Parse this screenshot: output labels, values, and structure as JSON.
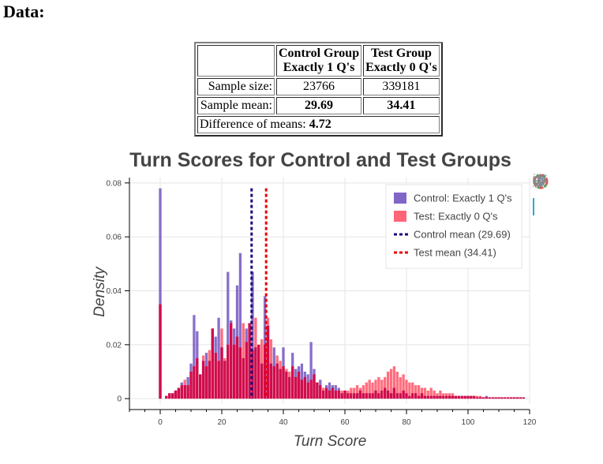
{
  "heading": "Data:",
  "table": {
    "col1_line1": "Control Group",
    "col1_line2": "Exactly 1 Q's",
    "col2_line1": "Test Group",
    "col2_line2": "Exactly 0 Q's",
    "row1_label": "Sample size:",
    "row1_control": "23766",
    "row1_test": "339181",
    "row2_label": "Sample mean:",
    "row2_control": "29.69",
    "row2_test": "34.41",
    "diff_label": "Difference of means: ",
    "diff_value": "4.72"
  },
  "toolbar": {
    "logo_icon": "bokeh-logo-icon",
    "pan_icon": "pan-icon",
    "zoom_icon": "box-zoom-icon",
    "wheel_icon": "wheel-zoom-icon",
    "reset_icon": "reset-icon"
  },
  "chart_data": {
    "type": "bar",
    "title": "Turn Scores for Control and Test Groups",
    "xlabel": "Turn Score",
    "ylabel": "Density",
    "xlim": [
      -10,
      120
    ],
    "ylim": [
      -0.002,
      0.082
    ],
    "xticks": [
      0,
      20,
      40,
      60,
      80,
      100,
      120
    ],
    "yticks": [
      0,
      0.02,
      0.04,
      0.06,
      0.08
    ],
    "ytick_labels": [
      "0",
      "0.02",
      "0.04",
      "0.06",
      "0.08"
    ],
    "grid": true,
    "legend_position": "top-right",
    "colors": {
      "control": "#6a4bbd",
      "test": "#ff4a5f",
      "overlap": "#cc0044",
      "control_mean": "#1a0a80",
      "test_mean": "#ee0000"
    },
    "series": [
      {
        "name": "Control: Exactly 1 Q's",
        "kind": "histogram",
        "x": [
          0,
          2,
          3,
          4,
          5,
          6,
          7,
          8,
          9,
          10,
          11,
          12,
          13,
          14,
          15,
          16,
          17,
          18,
          19,
          20,
          21,
          22,
          23,
          24,
          25,
          26,
          27,
          28,
          29,
          30,
          31,
          32,
          33,
          34,
          35,
          36,
          37,
          38,
          39,
          40,
          41,
          42,
          43,
          44,
          45,
          46,
          47,
          48,
          49,
          50,
          51,
          52,
          53,
          54,
          55,
          56,
          57,
          58,
          59,
          60,
          61,
          62,
          63,
          64,
          65,
          66,
          67,
          68,
          69,
          70,
          71,
          72,
          73,
          74,
          75,
          76,
          77,
          78,
          79,
          80,
          81,
          82,
          83,
          84,
          85,
          86,
          87,
          88,
          89,
          90,
          91,
          92,
          93,
          94,
          95,
          96,
          97,
          98,
          99,
          100,
          101,
          102,
          103,
          104,
          105,
          106,
          107,
          108,
          109,
          110,
          111,
          112,
          113,
          114,
          115,
          116,
          117,
          118
        ],
        "values": [
          0.078,
          0.001,
          0.002,
          0.002,
          0.003,
          0.004,
          0.006,
          0.005,
          0.008,
          0.013,
          0.031,
          0.025,
          0.009,
          0.014,
          0.017,
          0.014,
          0.026,
          0.023,
          0.03,
          0.019,
          0.014,
          0.047,
          0.029,
          0.026,
          0.042,
          0.054,
          0.015,
          0.026,
          0.028,
          0.047,
          0.019,
          0.02,
          0.013,
          0.038,
          0.027,
          0.013,
          0.019,
          0.013,
          0.011,
          0.019,
          0.01,
          0.008,
          0.017,
          0.011,
          0.012,
          0.013,
          0.01,
          0.009,
          0.021,
          0.011,
          0.006,
          0.007,
          0.003,
          0.005,
          0.006,
          0.005,
          0.005,
          0.004,
          0.002,
          0.003,
          0.002,
          0.002,
          0.002,
          0.002,
          0.003,
          0.002,
          0.002,
          0.002,
          0.002,
          0.003,
          0.002,
          0.003,
          0.004,
          0.003,
          0.002,
          0.004,
          0.002,
          0.002,
          0.003,
          0.002,
          0.001,
          0.002,
          0.002,
          0.001,
          0.002,
          0.001,
          0.001,
          0.001,
          0.001,
          0.001,
          0.001,
          0.001,
          0.001,
          0.001,
          0.001,
          0.001,
          0.001,
          0.001,
          0.001,
          0.001,
          0.001,
          0.001,
          0.0005,
          0.0005,
          0.0005,
          0.001,
          0.0005,
          0.0005,
          0.0005,
          0.0005,
          0.0005,
          0.0005,
          0.0005,
          0.0005,
          0.0005,
          0.0005,
          0.0005,
          0.0005
        ]
      },
      {
        "name": "Test: Exactly 0 Q's",
        "kind": "histogram",
        "x": [
          0,
          2,
          3,
          4,
          5,
          6,
          7,
          8,
          9,
          10,
          11,
          12,
          13,
          14,
          15,
          16,
          17,
          18,
          19,
          20,
          21,
          22,
          23,
          24,
          25,
          26,
          27,
          28,
          29,
          30,
          31,
          32,
          33,
          34,
          35,
          36,
          37,
          38,
          39,
          40,
          41,
          42,
          43,
          44,
          45,
          46,
          47,
          48,
          49,
          50,
          51,
          52,
          53,
          54,
          55,
          56,
          57,
          58,
          59,
          60,
          61,
          62,
          63,
          64,
          65,
          66,
          67,
          68,
          69,
          70,
          71,
          72,
          73,
          74,
          75,
          76,
          77,
          78,
          79,
          80,
          81,
          82,
          83,
          84,
          85,
          86,
          87,
          88,
          89,
          90,
          91,
          92,
          93,
          94,
          95,
          96,
          97,
          98,
          99,
          100,
          101,
          102,
          103,
          104,
          105,
          106,
          107,
          108,
          109,
          110,
          111,
          112,
          113,
          114,
          115,
          116,
          117,
          118
        ],
        "values": [
          0.035,
          0.001,
          0.002,
          0.002,
          0.003,
          0.004,
          0.005,
          0.007,
          0.005,
          0.01,
          0.012,
          0.015,
          0.009,
          0.016,
          0.012,
          0.018,
          0.026,
          0.017,
          0.014,
          0.026,
          0.015,
          0.02,
          0.028,
          0.02,
          0.023,
          0.019,
          0.028,
          0.021,
          0.028,
          0.018,
          0.03,
          0.02,
          0.022,
          0.02,
          0.03,
          0.022,
          0.012,
          0.016,
          0.014,
          0.012,
          0.011,
          0.01,
          0.012,
          0.008,
          0.01,
          0.007,
          0.008,
          0.006,
          0.007,
          0.009,
          0.006,
          0.005,
          0.004,
          0.004,
          0.003,
          0.004,
          0.003,
          0.003,
          0.003,
          0.003,
          0.003,
          0.004,
          0.004,
          0.005,
          0.004,
          0.005,
          0.006,
          0.007,
          0.006,
          0.007,
          0.008,
          0.007,
          0.008,
          0.01,
          0.011,
          0.012,
          0.01,
          0.008,
          0.009,
          0.007,
          0.006,
          0.006,
          0.005,
          0.005,
          0.004,
          0.004,
          0.003,
          0.004,
          0.003,
          0.002,
          0.003,
          0.002,
          0.002,
          0.002,
          0.002,
          0.001,
          0.001,
          0.001,
          0.001,
          0.001,
          0.001,
          0.001,
          0.001,
          0.001,
          0.0005,
          0.0005,
          0.0005,
          0.0005,
          0.0005,
          0.0005,
          0.0005,
          0.0005,
          0.0005,
          0.0005,
          0.0005,
          0.0005,
          0.0005,
          0.0005
        ]
      },
      {
        "name": "Control mean (29.69)",
        "kind": "vline",
        "x": 29.69,
        "y_top": 0.078
      },
      {
        "name": "Test mean (34.41)",
        "kind": "vline",
        "x": 34.41,
        "y_top": 0.078
      }
    ]
  }
}
